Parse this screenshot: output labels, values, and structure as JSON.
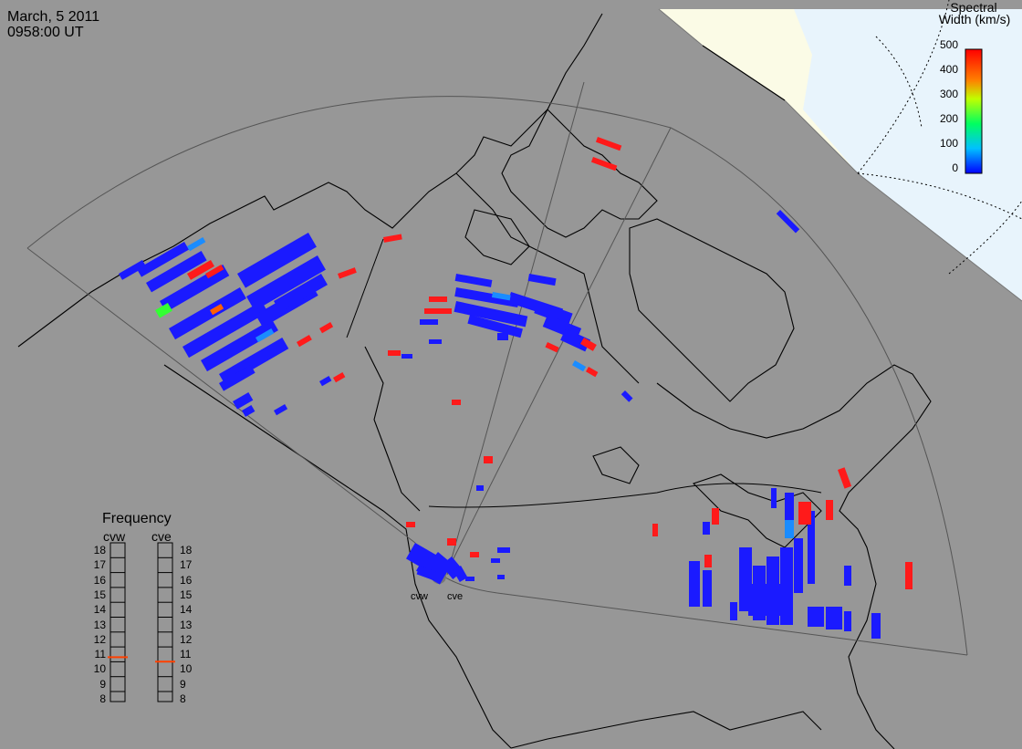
{
  "header": {
    "date": "March, 5 2011",
    "time": "0958:00 UT"
  },
  "colorbar": {
    "title_line1": "Spectral",
    "title_line2": "Width (km/s)",
    "ticks": [
      "500",
      "400",
      "300",
      "200",
      "100",
      "0"
    ],
    "colors": [
      "#0000ff",
      "#0080ff",
      "#00ffff",
      "#00ff00",
      "#ffff00",
      "#ff8000",
      "#ff0000"
    ]
  },
  "frequency_panel": {
    "title": "Frequency",
    "radars": [
      "cvw",
      "cve"
    ],
    "ticks": [
      "18",
      "17",
      "16",
      "15",
      "14",
      "13",
      "12",
      "11",
      "10",
      "9",
      "8"
    ],
    "marker_color": "#ff4000",
    "cvw_mhz": 10.8,
    "cve_mhz": 10.5
  },
  "sites": {
    "cvw": "cvw",
    "cve": "cve"
  },
  "colors": {
    "background": "#979797",
    "daylight": "#fbfbe6",
    "ocean_day": "#e8f4fc",
    "coast": "#000000"
  }
}
